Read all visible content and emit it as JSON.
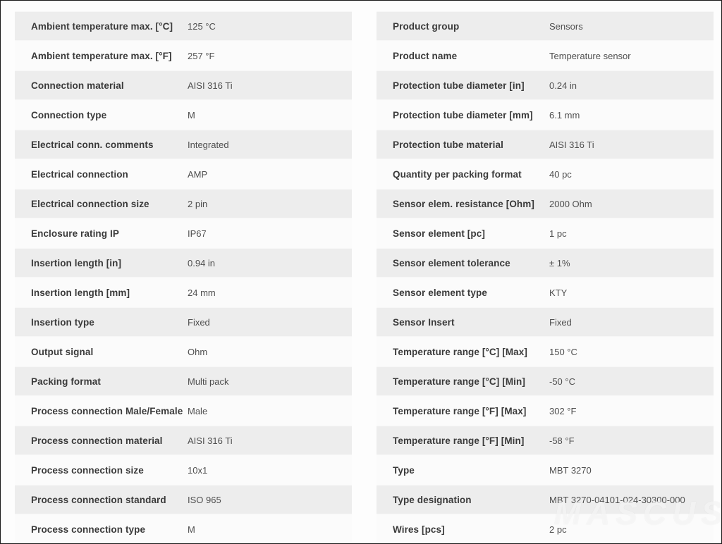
{
  "colors": {
    "frame_border": "#1a1a1a",
    "row_shade_bg": "#ededed",
    "row_plain_bg": "#fbfbfb",
    "label_text": "#3a3a3a",
    "value_text": "#4f4f4f",
    "watermark": "rgba(255,255,255,0.62)"
  },
  "watermark": {
    "text": "MASCUS"
  },
  "left_table": {
    "rows": [
      {
        "label": "Ambient temperature max. [°C]",
        "value": "125 °C"
      },
      {
        "label": "Ambient temperature max. [°F]",
        "value": "257 °F"
      },
      {
        "label": "Connection material",
        "value": "AISI 316 Ti"
      },
      {
        "label": "Connection type",
        "value": "M"
      },
      {
        "label": "Electrical conn. comments",
        "value": "Integrated"
      },
      {
        "label": "Electrical connection",
        "value": "AMP"
      },
      {
        "label": "Electrical connection size",
        "value": "2 pin"
      },
      {
        "label": "Enclosure rating IP",
        "value": "IP67"
      },
      {
        "label": "Insertion length [in]",
        "value": "0.94 in"
      },
      {
        "label": "Insertion length [mm]",
        "value": "24 mm"
      },
      {
        "label": "Insertion type",
        "value": "Fixed"
      },
      {
        "label": "Output signal",
        "value": "Ohm"
      },
      {
        "label": "Packing format",
        "value": "Multi pack"
      },
      {
        "label": "Process connection Male/Female",
        "value": "Male"
      },
      {
        "label": "Process connection material",
        "value": "AISI 316 Ti"
      },
      {
        "label": "Process connection size",
        "value": "10x1"
      },
      {
        "label": "Process connection standard",
        "value": "ISO 965"
      },
      {
        "label": "Process connection type",
        "value": "M"
      }
    ]
  },
  "right_table": {
    "rows": [
      {
        "label": "Product group",
        "value": "Sensors"
      },
      {
        "label": "Product name",
        "value": "Temperature sensor"
      },
      {
        "label": "Protection tube diameter [in]",
        "value": "0.24 in"
      },
      {
        "label": "Protection tube diameter [mm]",
        "value": "6.1 mm"
      },
      {
        "label": "Protection tube material",
        "value": "AISI 316 Ti"
      },
      {
        "label": "Quantity per packing format",
        "value": "40 pc"
      },
      {
        "label": "Sensor elem. resistance [Ohm]",
        "value": "2000 Ohm"
      },
      {
        "label": "Sensor element [pc]",
        "value": "1 pc"
      },
      {
        "label": "Sensor element tolerance",
        "value": "± 1%"
      },
      {
        "label": "Sensor element type",
        "value": "KTY"
      },
      {
        "label": "Sensor Insert",
        "value": "Fixed"
      },
      {
        "label": "Temperature range [°C] [Max]",
        "value": "150 °C"
      },
      {
        "label": "Temperature range [°C] [Min]",
        "value": "-50 °C"
      },
      {
        "label": "Temperature range [°F] [Max]",
        "value": "302 °F"
      },
      {
        "label": "Temperature range [°F] [Min]",
        "value": "-58 °F"
      },
      {
        "label": "Type",
        "value": "MBT 3270"
      },
      {
        "label": "Type designation",
        "value": "MBT 3270-04101-024-30300-000"
      },
      {
        "label": "Wires [pcs]",
        "value": "2 pc"
      }
    ]
  }
}
